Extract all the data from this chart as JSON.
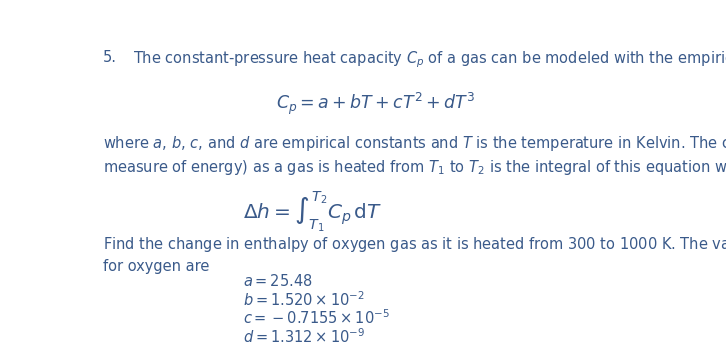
{
  "number": "5.",
  "line1": "The constant-pressure heat capacity $C_p$ of a gas can be modeled with the empirical equation",
  "equation1": "$C_p = a + bT + cT^2 + dT^3$",
  "body_line1": "where $a$, $b$, $c$, and $d$ are empirical constants and $T$ is the temperature in Kelvin. The change in enthalpy (a",
  "body_line2": "measure of energy) as a gas is heated from $T_1$ to $T_2$ is the integral of this equation with respect to $T$:",
  "integral_eq": "$\\Delta h = \\int_{T_1}^{T_2} C_p\\, \\mathrm{d}T$",
  "find_line1": "Find the change in enthalpy of oxygen gas as it is heated from 300 to 1000 K. The values of $a$, $b$, $c$, and $d$",
  "find_line2": "for oxygen are",
  "val_a": "$a = 25.48$",
  "val_b": "$b = 1.520 \\times 10^{-2}$",
  "val_c": "$c = -0.7155 \\times 10^{-5}$",
  "val_d": "$d = 1.312 \\times 10^{-9}$",
  "text_color": "#3a5a8a",
  "bg_color": "#ffffff",
  "fontsize": 10.5,
  "eq_fontsize": 12.5
}
